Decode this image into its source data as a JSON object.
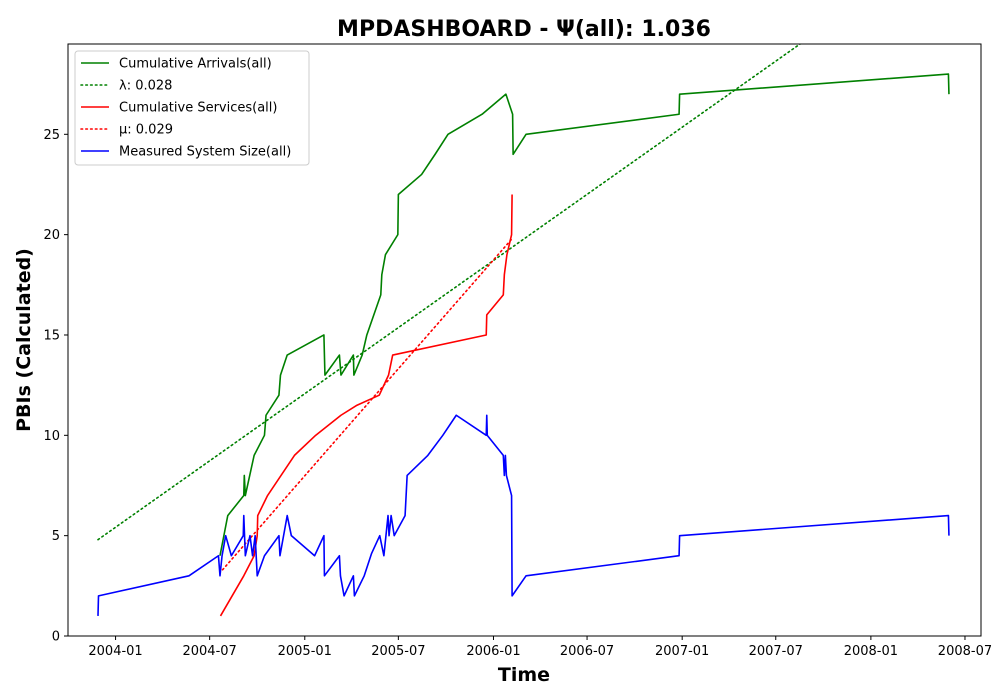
{
  "chart_data": {
    "type": "line",
    "title": "MPDASHBOARD -  Ψ(all): 1.036",
    "xlabel": "Time",
    "ylabel": "PBIs (Calculated)",
    "xlim": [
      "2003-10-01",
      "2008-08-01"
    ],
    "ylim": [
      0,
      29.5
    ],
    "x_ticks": [
      "2004-01",
      "2004-07",
      "2005-01",
      "2005-07",
      "2006-01",
      "2006-07",
      "2007-01",
      "2007-07",
      "2008-01",
      "2008-07"
    ],
    "y_ticks": [
      0,
      5,
      10,
      15,
      20,
      25
    ],
    "grid": false,
    "legend_position": "top-left",
    "series": [
      {
        "name": "Cumulative Arrivals(all)",
        "style": "solid",
        "color": "#008000",
        "points": [
          [
            "2004-07-21",
            4
          ],
          [
            "2004-08-05",
            6
          ],
          [
            "2004-09-05",
            7
          ],
          [
            "2004-09-06",
            8
          ],
          [
            "2004-09-08",
            7
          ],
          [
            "2004-09-25",
            9
          ],
          [
            "2004-10-15",
            10
          ],
          [
            "2004-10-18",
            11
          ],
          [
            "2004-11-12",
            12
          ],
          [
            "2004-11-15",
            13
          ],
          [
            "2004-11-28",
            14
          ],
          [
            "2005-02-07",
            15
          ],
          [
            "2005-02-09",
            13
          ],
          [
            "2005-03-09",
            14
          ],
          [
            "2005-03-12",
            13
          ],
          [
            "2005-04-05",
            14
          ],
          [
            "2005-04-06",
            13
          ],
          [
            "2005-04-22",
            14
          ],
          [
            "2005-05-01",
            15
          ],
          [
            "2005-05-28",
            17
          ],
          [
            "2005-05-30",
            18
          ],
          [
            "2005-06-06",
            19
          ],
          [
            "2005-06-30",
            20
          ],
          [
            "2005-07-01",
            22
          ],
          [
            "2005-08-15",
            23
          ],
          [
            "2005-09-10",
            24
          ],
          [
            "2005-10-05",
            25
          ],
          [
            "2005-12-10",
            26
          ],
          [
            "2006-01-25",
            27
          ],
          [
            "2006-02-07",
            26
          ],
          [
            "2006-02-08",
            24
          ],
          [
            "2006-03-05",
            25
          ],
          [
            "2006-12-26",
            26
          ],
          [
            "2006-12-27",
            27
          ],
          [
            "2008-05-30",
            28
          ],
          [
            "2008-05-31",
            27
          ]
        ]
      },
      {
        "name": "λ: 0.028",
        "style": "dotted",
        "color": "#008000",
        "points": [
          [
            "2003-11-28",
            4.8
          ],
          [
            "2007-08-17",
            29.5
          ]
        ]
      },
      {
        "name": "Cumulative Services(all)",
        "style": "solid",
        "color": "#ff0000",
        "points": [
          [
            "2004-07-22",
            1
          ],
          [
            "2004-09-05",
            3
          ],
          [
            "2004-09-25",
            4
          ],
          [
            "2004-10-01",
            5
          ],
          [
            "2004-10-02",
            6
          ],
          [
            "2004-10-21",
            7
          ],
          [
            "2004-12-12",
            9
          ],
          [
            "2005-01-22",
            10
          ],
          [
            "2005-03-12",
            11
          ],
          [
            "2005-04-12",
            11.5
          ],
          [
            "2005-05-25",
            12
          ],
          [
            "2005-06-12",
            13
          ],
          [
            "2005-06-20",
            14
          ],
          [
            "2005-12-18",
            15
          ],
          [
            "2005-12-19",
            16
          ],
          [
            "2006-01-20",
            17
          ],
          [
            "2006-01-22",
            18
          ],
          [
            "2006-01-27",
            19
          ],
          [
            "2006-02-05",
            20
          ],
          [
            "2006-02-06",
            22
          ]
        ]
      },
      {
        "name": "μ: 0.029",
        "style": "dotted",
        "color": "#ff0000",
        "points": [
          [
            "2004-07-26",
            3.3
          ],
          [
            "2006-02-06",
            19.8
          ]
        ]
      },
      {
        "name": "Measured System Size(all)",
        "style": "solid",
        "color": "#0000ff",
        "points": [
          [
            "2003-11-28",
            1
          ],
          [
            "2003-11-29",
            2
          ],
          [
            "2004-05-22",
            3
          ],
          [
            "2004-07-18",
            4
          ],
          [
            "2004-07-21",
            3
          ],
          [
            "2004-07-25",
            4
          ],
          [
            "2004-08-01",
            5
          ],
          [
            "2004-08-12",
            4
          ],
          [
            "2004-09-04",
            5
          ],
          [
            "2004-09-05",
            6
          ],
          [
            "2004-09-08",
            4
          ],
          [
            "2004-09-17",
            5
          ],
          [
            "2004-09-22",
            4
          ],
          [
            "2004-09-27",
            5
          ],
          [
            "2004-10-01",
            3
          ],
          [
            "2004-10-15",
            4
          ],
          [
            "2004-11-12",
            5
          ],
          [
            "2004-11-14",
            4
          ],
          [
            "2004-11-28",
            6
          ],
          [
            "2004-12-06",
            5
          ],
          [
            "2005-01-20",
            4
          ],
          [
            "2005-02-07",
            5
          ],
          [
            "2005-02-08",
            3
          ],
          [
            "2005-03-09",
            4
          ],
          [
            "2005-03-11",
            3
          ],
          [
            "2005-03-18",
            2
          ],
          [
            "2005-04-05",
            3
          ],
          [
            "2005-04-07",
            2
          ],
          [
            "2005-04-26",
            3
          ],
          [
            "2005-05-10",
            4.1
          ],
          [
            "2005-05-26",
            5
          ],
          [
            "2005-06-03",
            4
          ],
          [
            "2005-06-11",
            6
          ],
          [
            "2005-06-13",
            5
          ],
          [
            "2005-06-17",
            6
          ],
          [
            "2005-06-23",
            5
          ],
          [
            "2005-07-14",
            6
          ],
          [
            "2005-07-18",
            8
          ],
          [
            "2005-08-27",
            9
          ],
          [
            "2005-09-25",
            10
          ],
          [
            "2005-10-21",
            11
          ],
          [
            "2005-12-18",
            10
          ],
          [
            "2005-12-19",
            11
          ],
          [
            "2005-12-20",
            10
          ],
          [
            "2006-01-20",
            9
          ],
          [
            "2006-01-22",
            8
          ],
          [
            "2006-01-24",
            9
          ],
          [
            "2006-01-26",
            8
          ],
          [
            "2006-02-05",
            7
          ],
          [
            "2006-02-06",
            2
          ],
          [
            "2006-03-05",
            3
          ],
          [
            "2006-12-26",
            4
          ],
          [
            "2006-12-27",
            5
          ],
          [
            "2008-05-30",
            6
          ],
          [
            "2008-05-31",
            5
          ]
        ]
      }
    ]
  }
}
